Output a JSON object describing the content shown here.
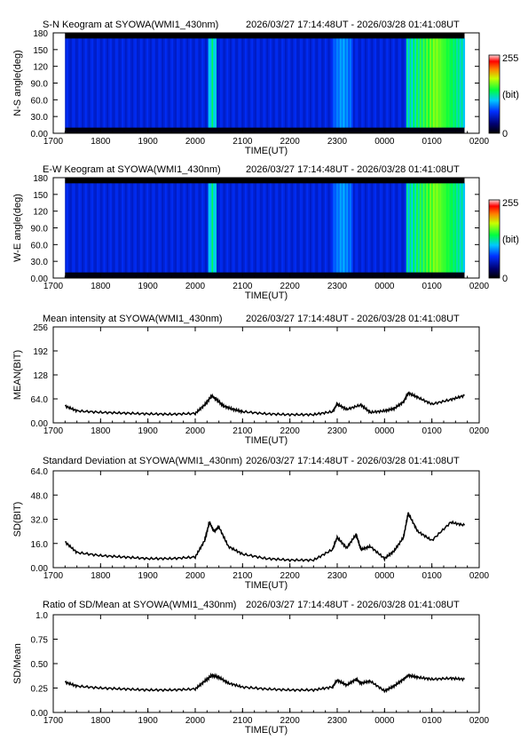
{
  "time_range": "2026/03/27 17:14:48UT - 2026/03/28 01:41:08UT",
  "x_tick_labels": [
    "1700",
    "1800",
    "1900",
    "2000",
    "2100",
    "2200",
    "2300",
    "0000",
    "0100",
    "0200"
  ],
  "x_axis_label": "TIME(UT)",
  "colorbar": {
    "max_label": "255",
    "unit_label": "(bit)",
    "min_label": "0"
  },
  "chart_data": [
    {
      "type": "heatmap",
      "title": "S-N Keogram at SYOWA(WMI1_430nm)",
      "xlabel": "TIME(UT)",
      "ylabel": "N-S angle(deg)",
      "ytick_labels": [
        "0.00",
        "30.0",
        "60.0",
        "90.0",
        "120",
        "150",
        "180"
      ],
      "ylim": [
        0,
        180
      ],
      "colorscale_range": [
        0,
        255
      ],
      "x_start_hour": 17.25,
      "x_end_hour": 25.69,
      "description_points": {
        "bright_bands": [
          {
            "from_hour": 20.25,
            "to_hour": 20.45,
            "value": 150
          },
          {
            "from_hour": 22.9,
            "to_hour": 23.3,
            "value": 110
          },
          {
            "from_hour": 24.45,
            "to_hour": 25.69,
            "value": 200
          }
        ],
        "background_value": 60
      }
    },
    {
      "type": "heatmap",
      "title": "E-W Keogram at SYOWA(WMI1_430nm)",
      "xlabel": "TIME(UT)",
      "ylabel": "W-E angle(deg)",
      "ytick_labels": [
        "0.00",
        "30.0",
        "60.0",
        "90.0",
        "120",
        "150",
        "180"
      ],
      "ylim": [
        0,
        180
      ],
      "colorscale_range": [
        0,
        255
      ],
      "x_start_hour": 17.25,
      "x_end_hour": 25.69,
      "description_points": {
        "bright_bands": [
          {
            "from_hour": 20.25,
            "to_hour": 20.45,
            "value": 150
          },
          {
            "from_hour": 22.9,
            "to_hour": 23.3,
            "value": 110
          },
          {
            "from_hour": 24.45,
            "to_hour": 25.69,
            "value": 200
          }
        ],
        "background_value": 60
      }
    },
    {
      "type": "line",
      "title": "Mean intensity at SYOWA(WMI1_430nm)",
      "xlabel": "TIME(UT)",
      "ylabel": "MEAN(BIT)",
      "ytick_labels": [
        "0.00",
        "64.0",
        "128",
        "192",
        "256"
      ],
      "ylim": [
        0,
        256
      ],
      "x_hours": [
        17.25,
        17.5,
        18.0,
        18.5,
        19.0,
        19.5,
        20.0,
        20.2,
        20.35,
        20.45,
        20.6,
        20.8,
        21.0,
        21.5,
        22.0,
        22.5,
        22.9,
        23.0,
        23.2,
        23.5,
        23.7,
        24.0,
        24.2,
        24.4,
        24.5,
        24.7,
        25.0,
        25.4,
        25.69
      ],
      "y": [
        45,
        32,
        28,
        26,
        24,
        23,
        25,
        48,
        72,
        62,
        45,
        36,
        30,
        24,
        22,
        22,
        30,
        50,
        36,
        48,
        28,
        32,
        38,
        56,
        80,
        68,
        50,
        62,
        73
      ]
    },
    {
      "type": "line",
      "title": "Standard Deviation at SYOWA(WMI1_430nm)",
      "xlabel": "TIME(UT)",
      "ylabel": "SD(BIT)",
      "ytick_labels": [
        "0.00",
        "16.0",
        "32.0",
        "48.0",
        "64.0"
      ],
      "ylim": [
        0,
        64
      ],
      "x_hours": [
        17.25,
        17.5,
        18.0,
        18.5,
        19.0,
        19.5,
        20.0,
        20.2,
        20.3,
        20.4,
        20.5,
        20.7,
        21.0,
        21.5,
        22.0,
        22.5,
        22.9,
        23.0,
        23.2,
        23.4,
        23.5,
        23.7,
        24.0,
        24.2,
        24.4,
        24.5,
        24.7,
        25.0,
        25.4,
        25.69
      ],
      "y": [
        17,
        10,
        8,
        7,
        6,
        6,
        7,
        18,
        30,
        24,
        27,
        14,
        9,
        6,
        5,
        5,
        12,
        20,
        13,
        22,
        12,
        14,
        6,
        11,
        20,
        36,
        24,
        18,
        30,
        28
      ]
    },
    {
      "type": "line",
      "title": "Ratio of SD/Mean at SYOWA(WMI1_430nm)",
      "xlabel": "TIME(UT)",
      "ylabel": "SD/Mean",
      "ytick_labels": [
        "0.00",
        "0.25",
        "0.50",
        "0.75",
        "1.0"
      ],
      "ylim": [
        0,
        1.0
      ],
      "x_hours": [
        17.25,
        17.5,
        18.0,
        18.5,
        19.0,
        19.5,
        20.0,
        20.2,
        20.35,
        20.5,
        20.7,
        21.0,
        21.5,
        22.0,
        22.5,
        22.9,
        23.0,
        23.2,
        23.4,
        23.5,
        23.7,
        24.0,
        24.2,
        24.4,
        24.5,
        24.7,
        25.0,
        25.4,
        25.69
      ],
      "y": [
        0.31,
        0.27,
        0.25,
        0.24,
        0.23,
        0.23,
        0.24,
        0.32,
        0.38,
        0.36,
        0.3,
        0.26,
        0.24,
        0.23,
        0.23,
        0.26,
        0.33,
        0.28,
        0.34,
        0.3,
        0.32,
        0.22,
        0.27,
        0.34,
        0.38,
        0.36,
        0.34,
        0.35,
        0.34
      ]
    }
  ]
}
